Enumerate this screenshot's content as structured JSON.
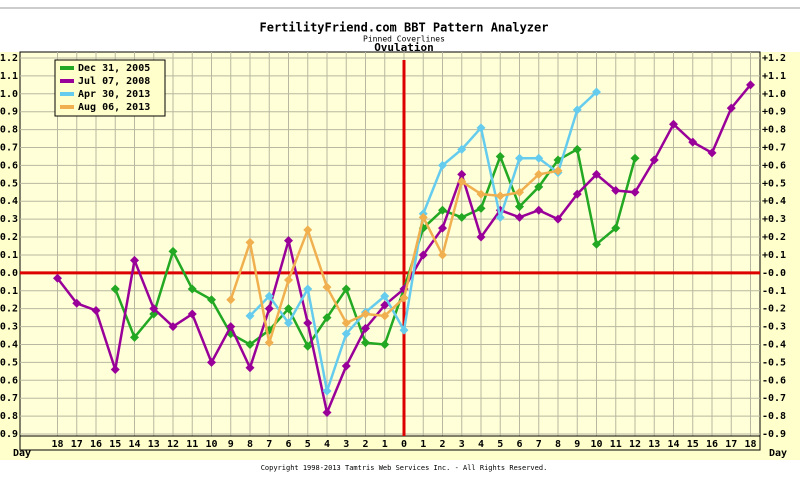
{
  "chart_data": {
    "type": "line",
    "title": "FertilityFriend.com BBT Pattern Analyzer",
    "subtitle": "Pinned Coverlines",
    "annotation": "Ovulation",
    "x_label": "Day",
    "footer": "Copyright 1998-2013 Tamtris Web Services Inc. - All Rights Reserved.",
    "categories": [
      "18",
      "17",
      "16",
      "15",
      "14",
      "13",
      "12",
      "11",
      "10",
      "9",
      "8",
      "7",
      "6",
      "5",
      "4",
      "3",
      "2",
      "1",
      "0",
      "1",
      "2",
      "3",
      "4",
      "5",
      "6",
      "7",
      "8",
      "9",
      "10",
      "11",
      "12",
      "13",
      "14",
      "15",
      "16",
      "17",
      "18"
    ],
    "series": [
      {
        "name": "Dec 31, 2005",
        "color": "#22a822",
        "values": [
          null,
          null,
          null,
          -0.09,
          -0.36,
          -0.23,
          0.12,
          -0.09,
          -0.15,
          -0.34,
          -0.4,
          -0.32,
          -0.2,
          -0.41,
          -0.25,
          -0.09,
          -0.39,
          -0.4,
          -0.09,
          0.25,
          0.35,
          0.31,
          0.36,
          0.65,
          0.37,
          0.48,
          0.63,
          0.69,
          0.16,
          0.25,
          0.64,
          null,
          null,
          null,
          null,
          null,
          null
        ]
      },
      {
        "name": "Jul 07, 2008",
        "color": "#990099",
        "values": [
          -0.03,
          -0.17,
          -0.21,
          -0.54,
          0.07,
          -0.2,
          -0.3,
          -0.23,
          -0.5,
          -0.3,
          -0.53,
          -0.2,
          0.18,
          -0.28,
          -0.78,
          -0.52,
          -0.31,
          -0.18,
          -0.09,
          0.1,
          0.25,
          0.55,
          0.2,
          0.35,
          0.31,
          0.35,
          0.3,
          0.44,
          0.55,
          0.46,
          0.45,
          0.63,
          0.83,
          0.73,
          0.67,
          0.92,
          1.05
        ]
      },
      {
        "name": "Apr 30, 2013",
        "color": "#66ccee",
        "values": [
          null,
          null,
          null,
          null,
          null,
          null,
          null,
          null,
          null,
          null,
          -0.24,
          -0.13,
          -0.28,
          -0.09,
          -0.66,
          -0.34,
          -0.22,
          -0.13,
          -0.32,
          0.33,
          0.6,
          0.69,
          0.81,
          0.31,
          0.64,
          0.64,
          0.56,
          0.91,
          1.01,
          null,
          null,
          null,
          null,
          null,
          null,
          null,
          null
        ]
      },
      {
        "name": "Aug 06, 2013",
        "color": "#f0b050",
        "values": [
          null,
          null,
          null,
          null,
          null,
          null,
          null,
          null,
          null,
          -0.15,
          0.17,
          -0.39,
          -0.04,
          0.24,
          -0.08,
          -0.28,
          -0.23,
          -0.24,
          -0.14,
          0.31,
          0.1,
          0.51,
          0.44,
          0.43,
          0.45,
          0.55,
          0.57,
          null,
          null,
          null,
          null,
          null,
          null,
          null,
          null,
          null,
          null
        ]
      }
    ],
    "ylim": [
      -0.9,
      1.2
    ],
    "yticks": [
      {
        "value": 1.2,
        "label": "+1.2"
      },
      {
        "value": 1.1,
        "label": "+1.1"
      },
      {
        "value": 1.0,
        "label": "+1.0"
      },
      {
        "value": 0.9,
        "label": "+0.9"
      },
      {
        "value": 0.8,
        "label": "+0.8"
      },
      {
        "value": 0.7,
        "label": "+0.7"
      },
      {
        "value": 0.6,
        "label": "+0.6"
      },
      {
        "value": 0.5,
        "label": "+0.5"
      },
      {
        "value": 0.4,
        "label": "+0.4"
      },
      {
        "value": 0.3,
        "label": "+0.3"
      },
      {
        "value": 0.2,
        "label": "+0.2"
      },
      {
        "value": 0.1,
        "label": "+0.1"
      },
      {
        "value": 0,
        "label": "-0.0"
      },
      {
        "value": -0.1,
        "label": "-0.1"
      },
      {
        "value": -0.2,
        "label": "-0.2"
      },
      {
        "value": -0.3,
        "label": "-0.3"
      },
      {
        "value": -0.4,
        "label": "-0.4"
      },
      {
        "value": -0.5,
        "label": "-0.5"
      },
      {
        "value": -0.6,
        "label": "-0.6"
      },
      {
        "value": -0.7,
        "label": "-0.7"
      },
      {
        "value": -0.8,
        "label": "-0.8"
      },
      {
        "value": -0.9,
        "label": "-0.9"
      }
    ],
    "grid": true
  }
}
